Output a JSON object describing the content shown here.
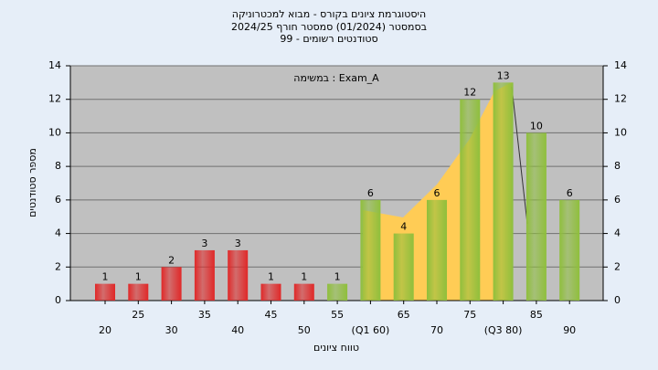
{
  "chart_data": {
    "type": "bar",
    "title": [
      "היסטוגרמת ציונים בקורס - מבוא למכטרוניקה",
      "בסמסטר  (01/2024)  סמסטר חורף  2024/25",
      "סטודנטים רשומים - 99"
    ],
    "annotation": "במשימה : Exam_A",
    "x_label": "טווח ציונים",
    "y_label": "מספר סטודנטים",
    "categories": [
      "20",
      "25",
      "30",
      "35",
      "40",
      "45",
      "50",
      "55",
      "(Q1 60)",
      "65",
      "70",
      "75",
      "(Q3 80)",
      "85",
      "90"
    ],
    "values": [
      1,
      1,
      2,
      3,
      3,
      1,
      1,
      1,
      6,
      4,
      6,
      12,
      13,
      10,
      6
    ],
    "colors": [
      "#e02828",
      "#e02828",
      "#e02828",
      "#e02828",
      "#e02828",
      "#e02828",
      "#e02828",
      "#8fbf3c",
      "#8fbf3c",
      "#8fbf3c",
      "#8fbf3c",
      "#8fbf3c",
      "#8fbf3c",
      "#8fbf3c",
      "#8fbf3c"
    ],
    "ylim": [
      0,
      14
    ],
    "yticks": [
      0,
      2,
      4,
      6,
      8,
      10,
      12,
      14
    ],
    "grid": true
  }
}
